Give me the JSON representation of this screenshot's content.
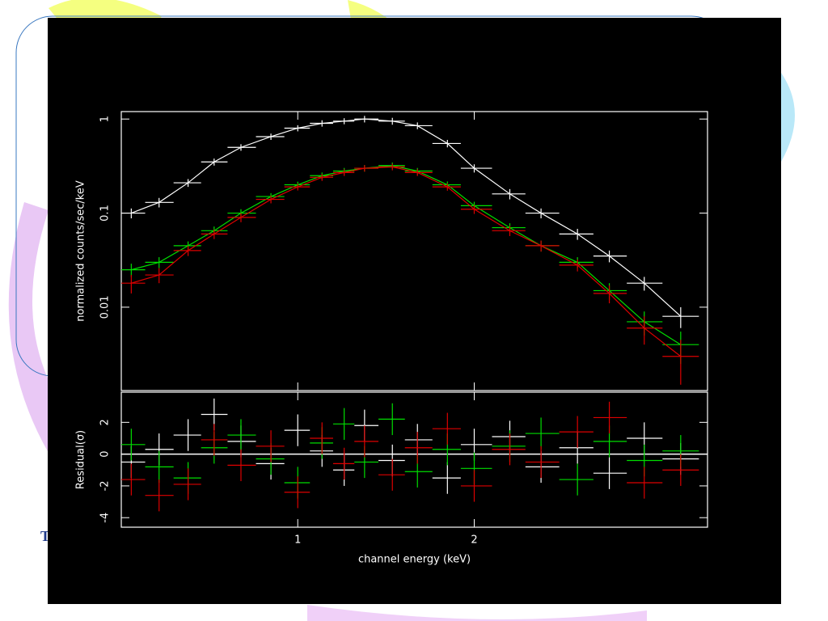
{
  "slide_text": "T",
  "chart_data": [
    {
      "type": "errorbar",
      "ylabel": "normalized counts/sec/keV",
      "xlog": true,
      "ylog": true,
      "x": [
        0.52,
        0.58,
        0.65,
        0.72,
        0.8,
        0.9,
        1.0,
        1.1,
        1.2,
        1.3,
        1.45,
        1.6,
        1.8,
        2.0,
        2.3,
        2.6,
        3.0,
        3.4,
        3.9,
        4.5
      ],
      "xlim": [
        0.5,
        5
      ],
      "xticks": [
        1,
        2
      ],
      "ylim": [
        0.0013,
        1.2
      ],
      "yticks": [
        1,
        0.1,
        0.01
      ],
      "series": [
        {
          "color": "#ffffff",
          "values": [
            0.1,
            0.13,
            0.21,
            0.35,
            0.5,
            0.65,
            0.8,
            0.9,
            0.95,
            1.0,
            0.95,
            0.85,
            0.55,
            0.3,
            0.16,
            0.1,
            0.06,
            0.035,
            0.018,
            0.008
          ],
          "errors": [
            0.012,
            0.015,
            0.02,
            0.03,
            0.04,
            0.05,
            0.06,
            0.07,
            0.07,
            0.08,
            0.08,
            0.07,
            0.05,
            0.03,
            0.02,
            0.012,
            0.008,
            0.005,
            0.003,
            0.002
          ]
        },
        {
          "color": "#00dd00",
          "values": [
            0.025,
            0.03,
            0.045,
            0.065,
            0.1,
            0.15,
            0.2,
            0.25,
            0.28,
            0.3,
            0.32,
            0.28,
            0.2,
            0.12,
            0.07,
            0.045,
            0.03,
            0.015,
            0.007,
            0.004
          ],
          "errors": [
            0.004,
            0.004,
            0.005,
            0.007,
            0.01,
            0.013,
            0.016,
            0.02,
            0.022,
            0.024,
            0.025,
            0.022,
            0.017,
            0.012,
            0.008,
            0.006,
            0.004,
            0.003,
            0.002,
            0.0015
          ]
        },
        {
          "color": "#dd0000",
          "values": [
            0.018,
            0.022,
            0.04,
            0.06,
            0.09,
            0.14,
            0.19,
            0.24,
            0.27,
            0.3,
            0.31,
            0.27,
            0.19,
            0.11,
            0.065,
            0.045,
            0.028,
            0.014,
            0.006,
            0.003
          ],
          "errors": [
            0.004,
            0.004,
            0.005,
            0.007,
            0.01,
            0.013,
            0.016,
            0.02,
            0.022,
            0.024,
            0.025,
            0.022,
            0.017,
            0.012,
            0.008,
            0.006,
            0.004,
            0.003,
            0.002,
            0.0015
          ]
        }
      ]
    },
    {
      "type": "errorbar",
      "ylabel": "Residual(σ)",
      "xlabel": "channel energy (keV)",
      "xlog": true,
      "ylog": false,
      "x": [
        0.52,
        0.58,
        0.65,
        0.72,
        0.8,
        0.9,
        1.0,
        1.1,
        1.2,
        1.3,
        1.45,
        1.6,
        1.8,
        2.0,
        2.3,
        2.6,
        3.0,
        3.4,
        3.9,
        4.5
      ],
      "xlim": [
        0.5,
        5
      ],
      "xticks": [
        1,
        2
      ],
      "ylim": [
        -4.6,
        3.9
      ],
      "yticks": [
        -4,
        -2,
        0,
        2
      ],
      "series": [
        {
          "color": "#ffffff",
          "values": [
            -0.5,
            0.3,
            1.2,
            2.5,
            0.8,
            -0.6,
            1.5,
            0.2,
            -1.0,
            1.8,
            -0.4,
            0.9,
            -1.5,
            0.6,
            1.1,
            -0.8,
            0.4,
            -1.2,
            1.0,
            -0.3
          ],
          "errors": [
            1,
            1,
            1,
            1,
            1,
            1,
            1,
            1,
            1,
            1,
            1,
            1,
            1,
            1,
            1,
            1,
            1,
            1,
            1,
            1
          ]
        },
        {
          "color": "#00dd00",
          "values": [
            0.6,
            -0.8,
            -1.5,
            0.4,
            1.2,
            -0.3,
            -1.8,
            0.7,
            1.9,
            -0.5,
            2.2,
            -1.1,
            0.3,
            -0.9,
            0.5,
            1.3,
            -1.6,
            0.8,
            -0.4,
            0.2
          ],
          "errors": [
            1,
            1,
            1,
            1,
            1,
            1,
            1,
            1,
            1,
            1,
            1,
            1,
            1,
            1,
            1,
            1,
            1,
            1,
            1,
            1
          ]
        },
        {
          "color": "#dd0000",
          "values": [
            -1.6,
            -2.6,
            -1.9,
            0.9,
            -0.7,
            0.5,
            -2.4,
            1.0,
            -0.6,
            0.8,
            -1.3,
            0.4,
            1.6,
            -2.0,
            0.3,
            -0.5,
            1.4,
            2.3,
            -1.8,
            -1.0
          ],
          "errors": [
            1,
            1,
            1,
            1,
            1,
            1,
            1,
            1,
            1,
            1,
            1,
            1,
            1,
            1,
            1,
            1,
            1,
            1,
            1,
            1
          ]
        }
      ]
    }
  ]
}
